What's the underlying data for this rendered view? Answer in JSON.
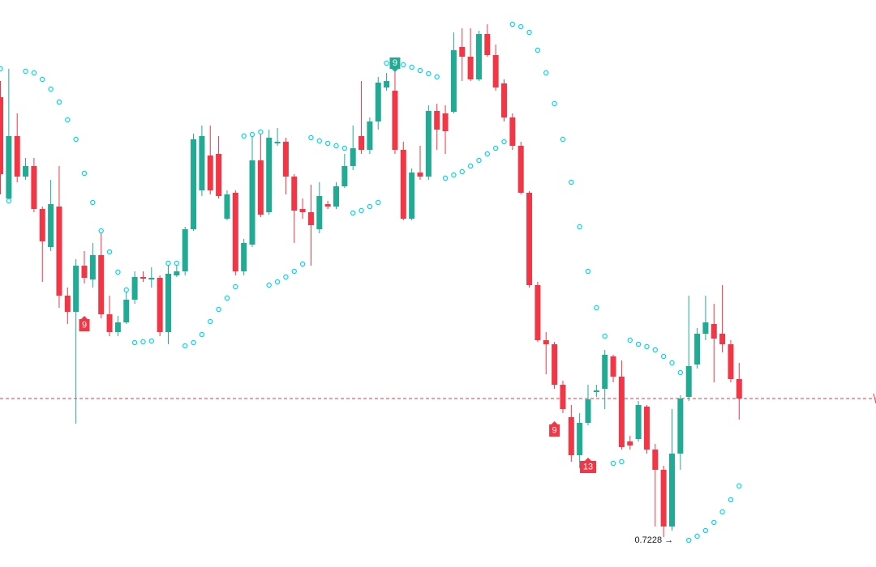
{
  "chart_data": {
    "type": "candlestick",
    "up_color": "#22ab94",
    "down_color": "#f23645",
    "sar_color": "#00d4f0",
    "ylim": [
      0.72095,
      0.75595
    ],
    "open": [
      0.74995,
      0.7437,
      0.74755,
      0.74505,
      0.7457,
      0.74305,
      0.7407,
      0.7432,
      0.7377,
      0.7367,
      0.73955,
      0.7387,
      0.7402,
      0.73655,
      0.73545,
      0.73605,
      0.73745,
      0.73885,
      0.7387,
      0.7388,
      0.73545,
      0.73895,
      0.7392,
      0.7418,
      0.7442,
      0.74635,
      0.74645,
      0.74245,
      0.74405,
      0.7392,
      0.74085,
      0.74605,
      0.74285,
      0.7471,
      0.7472,
      0.74505,
      0.74305,
      0.74285,
      0.7418,
      0.74335,
      0.7432,
      0.74445,
      0.7457,
      0.74755,
      0.7467,
      0.74845,
      0.75055,
      0.75035,
      0.7467,
      0.74245,
      0.7453,
      0.74505,
      0.7491,
      0.74895,
      0.74905,
      0.75305,
      0.75245,
      0.75105,
      0.75385,
      0.75255,
      0.7508,
      0.7487,
      0.74695,
      0.74405,
      0.73835,
      0.73495,
      0.7347,
      0.7322,
      0.7302,
      0.72785,
      0.72985,
      0.73175,
      0.73195,
      0.73395,
      0.7327,
      0.7287,
      0.72885,
      0.73085,
      0.7282,
      0.72695,
      0.72345,
      0.72795,
      0.73145,
      0.73345,
      0.73535,
      0.73595,
      0.73535,
      0.7347,
      0.73255
    ],
    "high": [
      0.75095,
      0.7517,
      0.74895,
      0.7462,
      0.7462,
      0.7432,
      0.74485,
      0.7457,
      0.7382,
      0.73995,
      0.74045,
      0.74095,
      0.7417,
      0.7377,
      0.73645,
      0.7382,
      0.7392,
      0.7392,
      0.73945,
      0.73895,
      0.73985,
      0.7397,
      0.74195,
      0.7477,
      0.7482,
      0.7482,
      0.74755,
      0.7442,
      0.7442,
      0.7412,
      0.7477,
      0.74795,
      0.74795,
      0.74805,
      0.74745,
      0.7452,
      0.7437,
      0.74455,
      0.7447,
      0.74355,
      0.7447,
      0.74645,
      0.7482,
      0.75095,
      0.7487,
      0.7512,
      0.75145,
      0.7517,
      0.7472,
      0.74555,
      0.74695,
      0.74945,
      0.74955,
      0.74945,
      0.75395,
      0.7542,
      0.7542,
      0.75405,
      0.75445,
      0.7532,
      0.75105,
      0.74895,
      0.7472,
      0.74415,
      0.73855,
      0.73545,
      0.73485,
      0.73245,
      0.73095,
      0.73045,
      0.7322,
      0.7322,
      0.73435,
      0.73405,
      0.7337,
      0.72905,
      0.7312,
      0.73095,
      0.72855,
      0.7272,
      0.7307,
      0.73155,
      0.7377,
      0.7357,
      0.7377,
      0.7372,
      0.73835,
      0.73495,
      0.73355
    ],
    "low": [
      0.74395,
      0.74345,
      0.7447,
      0.74485,
      0.74285,
      0.73855,
      0.74045,
      0.73695,
      0.73595,
      0.7298,
      0.73845,
      0.7382,
      0.7363,
      0.7352,
      0.7352,
      0.73595,
      0.7372,
      0.73855,
      0.7382,
      0.7352,
      0.7347,
      0.73885,
      0.73895,
      0.7417,
      0.74385,
      0.74395,
      0.7437,
      0.74235,
      0.73895,
      0.73895,
      0.7407,
      0.74255,
      0.7427,
      0.74695,
      0.74395,
      0.74095,
      0.74245,
      0.73955,
      0.74155,
      0.74305,
      0.74305,
      0.74435,
      0.74545,
      0.74645,
      0.74645,
      0.74795,
      0.75035,
      0.74645,
      0.74235,
      0.74235,
      0.74485,
      0.74485,
      0.7467,
      0.74645,
      0.74895,
      0.75095,
      0.75095,
      0.75095,
      0.75245,
      0.75035,
      0.74845,
      0.7467,
      0.74395,
      0.7382,
      0.73485,
      0.73285,
      0.73195,
      0.73045,
      0.72745,
      0.72705,
      0.7297,
      0.73145,
      0.7307,
      0.73235,
      0.7282,
      0.7282,
      0.7287,
      0.72795,
      0.72345,
      0.7228,
      0.7232,
      0.72695,
      0.7312,
      0.7332,
      0.73495,
      0.73235,
      0.7342,
      0.73235,
      0.73005
    ],
    "close": [
      0.7452,
      0.74755,
      0.74505,
      0.7457,
      0.74305,
      0.74105,
      0.74335,
      0.7377,
      0.7367,
      0.73955,
      0.7388,
      0.7402,
      0.73655,
      0.73545,
      0.73605,
      0.73745,
      0.73885,
      0.73875,
      0.7388,
      0.73545,
      0.73905,
      0.7392,
      0.7418,
      0.74735,
      0.74755,
      0.7442,
      0.74385,
      0.74395,
      0.7392,
      0.74095,
      0.74605,
      0.7427,
      0.74745,
      0.7472,
      0.74505,
      0.74295,
      0.74285,
      0.74205,
      0.74385,
      0.7432,
      0.74445,
      0.7457,
      0.7468,
      0.7467,
      0.74845,
      0.75085,
      0.75095,
      0.7467,
      0.74245,
      0.7453,
      0.74505,
      0.7491,
      0.74795,
      0.74785,
      0.75285,
      0.75245,
      0.75105,
      0.75385,
      0.75255,
      0.75055,
      0.7487,
      0.74695,
      0.74405,
      0.73835,
      0.73495,
      0.7347,
      0.7322,
      0.7307,
      0.72785,
      0.72985,
      0.7313,
      0.73185,
      0.73405,
      0.7327,
      0.72835,
      0.72845,
      0.73095,
      0.7282,
      0.72695,
      0.72345,
      0.72795,
      0.73135,
      0.73335,
      0.73535,
      0.73605,
      0.73505,
      0.7347,
      0.73255,
      0.73135
    ],
    "sar": [
      0.7517,
      0.74355,
      null,
      0.75155,
      0.75145,
      0.75105,
      0.75045,
      0.74965,
      0.74855,
      0.74735,
      0.74525,
      0.74345,
      0.7417,
      0.7404,
      0.73915,
      0.73805,
      0.7348,
      0.73485,
      0.7349,
      null,
      0.7397,
      0.7397,
      0.7346,
      0.7348,
      0.7353,
      0.7361,
      0.73685,
      0.73755,
      0.73825,
      0.74755,
      0.74765,
      0.7478,
      0.73835,
      0.73855,
      0.73885,
      0.7392,
      0.73965,
      0.74745,
      0.74725,
      0.7471,
      0.74695,
      0.7468,
      0.7428,
      0.74295,
      0.7432,
      0.74345,
      0.75205,
      0.7521,
      0.75195,
      0.7518,
      0.7516,
      0.7514,
      0.7512,
      0.74495,
      0.74515,
      0.74535,
      0.7457,
      0.74605,
      0.74645,
      0.7468,
      0.7472,
      0.75445,
      0.7543,
      0.75395,
      0.75285,
      0.75145,
      0.74955,
      0.74735,
      0.7447,
      0.74195,
      0.7392,
      0.73695,
      0.7352,
      0.72735,
      0.72745,
      0.73495,
      0.7347,
      0.73455,
      0.73435,
      0.73395,
      0.73355,
      0.73295,
      0.7226,
      0.72285,
      0.7232,
      0.7237,
      0.72435,
      0.7251,
      0.72595
    ],
    "signals": [
      {
        "index": 10,
        "text": "9",
        "color": "#f23645",
        "anchor": "low"
      },
      {
        "index": 47,
        "text": "9",
        "color": "#22ab94",
        "anchor": "high"
      },
      {
        "index": 66,
        "text": "9",
        "color": "#f23645",
        "anchor": "low"
      },
      {
        "index": 70,
        "text": "13",
        "color": "#f23645",
        "anchor": "low"
      }
    ],
    "low_label": "0.7228 →"
  }
}
